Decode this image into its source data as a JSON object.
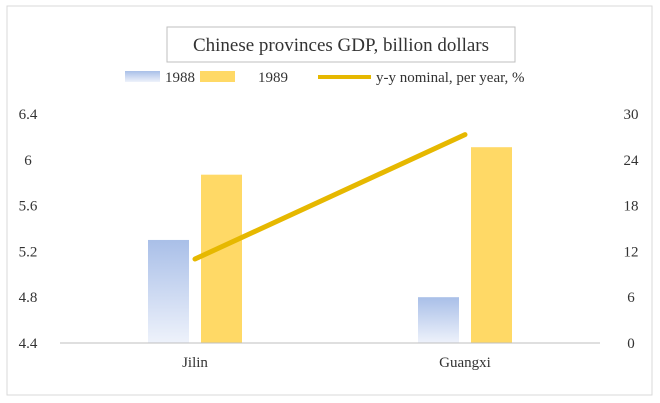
{
  "chart_data": {
    "type": "bar",
    "title": "Chinese provinces GDP, billion dollars",
    "categories": [
      "Jilin",
      "Guangxi"
    ],
    "series": [
      {
        "name": "1988",
        "type": "bar",
        "axis": "left",
        "values": [
          5.3,
          4.8
        ]
      },
      {
        "name": "1989",
        "type": "bar",
        "axis": "left",
        "values": [
          5.87,
          6.11
        ]
      },
      {
        "name": "y-y nominal, per year, %",
        "type": "line",
        "axis": "right",
        "values": [
          11,
          27.3
        ]
      }
    ],
    "y_left": {
      "min": 4.4,
      "max": 6.4,
      "ticks": [
        "4.4",
        "4.8",
        "5.2",
        "5.6",
        "6",
        "6.4"
      ]
    },
    "y_right": {
      "min": 0,
      "max": 30,
      "ticks": [
        "0",
        "6",
        "12",
        "18",
        "24",
        "30"
      ]
    },
    "grid": false,
    "legend": "top",
    "colors": {
      "bar_1988": "#a9bfe8",
      "bar_1989": "#ffd966",
      "line": "#e6b800",
      "frame": "#d9d9d9",
      "axis": "#bfbfbf"
    }
  }
}
